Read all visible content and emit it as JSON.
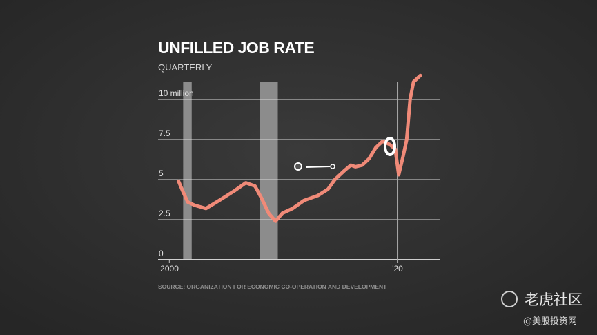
{
  "chart_data": {
    "type": "line",
    "title": "UNFILLED JOB RATE",
    "subtitle": "QUARTERLY",
    "source": "SOURCE: ORGANIZATION FOR ECONOMIC CO-OPERATION AND DEVELOPMENT",
    "x": [
      2000.8,
      2001.15,
      2001.6,
      2002.2,
      2003.2,
      2003.9,
      2004.6,
      2005.7,
      2006.7,
      2007.5,
      2008.1,
      2008.7,
      2009.3,
      2009.9,
      2010.8,
      2011.8,
      2013.0,
      2013.9,
      2014.5,
      2015.4,
      2015.9,
      2016.3,
      2016.9,
      2017.5,
      2018.1,
      2018.7,
      2019.3,
      2019.8,
      2020.1,
      2020.5,
      2020.8,
      2021.1,
      2021.4,
      2022.0
    ],
    "series": [
      {
        "name": "Unfilled jobs",
        "color": "#f08a78",
        "values": [
          4.9,
          4.3,
          3.6,
          3.4,
          3.2,
          3.5,
          3.8,
          4.3,
          4.8,
          4.6,
          3.8,
          2.9,
          2.4,
          2.9,
          3.2,
          3.7,
          4.0,
          4.4,
          5.0,
          5.6,
          5.9,
          5.8,
          5.9,
          6.3,
          7.0,
          7.4,
          7.2,
          6.9,
          5.3,
          6.5,
          7.5,
          10.0,
          11.1,
          11.5
        ]
      }
    ],
    "shaded_ranges": [
      [
        2001.2,
        2001.95
      ],
      [
        2007.9,
        2009.5
      ]
    ],
    "shade_color": "#8c8c8c",
    "xlim": [
      1999,
      2023.75
    ],
    "xticks": [
      2000,
      {
        "value": 2020,
        "label": "'20"
      }
    ],
    "ylim": [
      0,
      12
    ],
    "yticks": [
      0,
      2.5,
      5,
      7.5,
      {
        "value": 10,
        "label": "10 million"
      }
    ],
    "grid": true,
    "watermark": {
      "brand": "老虎社区",
      "handle": "@美股投资网"
    }
  }
}
